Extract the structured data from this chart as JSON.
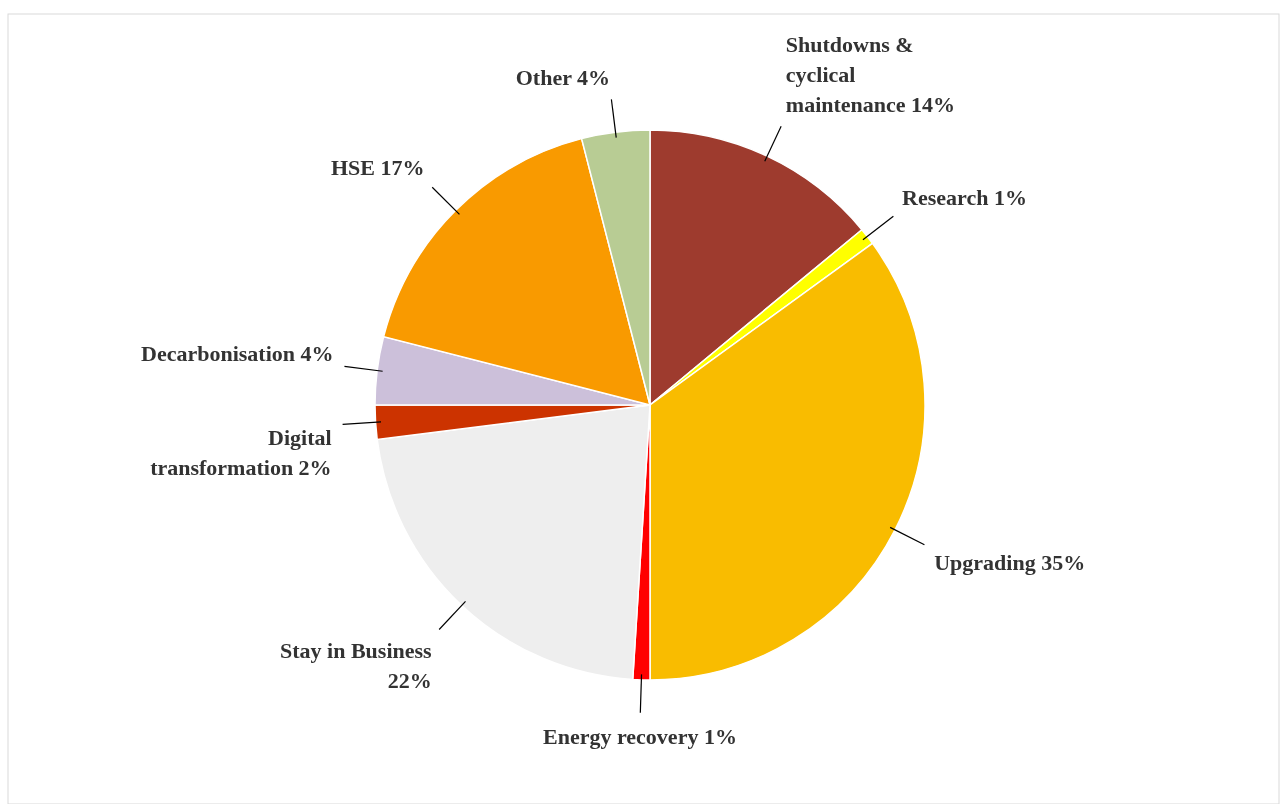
{
  "chart_data": {
    "type": "pie",
    "categories": [
      "Shutdowns & cyclical maintenance",
      "Research",
      "Upgrading",
      "Energy recovery",
      "Stay in Business",
      "Digital transformation",
      "Decarbonisation",
      "HSE",
      "Other"
    ],
    "values": [
      14,
      1,
      35,
      1,
      22,
      2,
      4,
      17,
      4
    ],
    "value_labels": [
      "14%",
      "1%",
      "35%",
      "1%",
      "22%",
      "2%",
      "4%",
      "17%",
      "4%"
    ],
    "colors": [
      "#9e3b2e",
      "#ffff00",
      "#f9bc00",
      "#ff0000",
      "#eeeeee",
      "#cc3300",
      "#ccc0da",
      "#f99a00",
      "#b8cc94"
    ]
  }
}
